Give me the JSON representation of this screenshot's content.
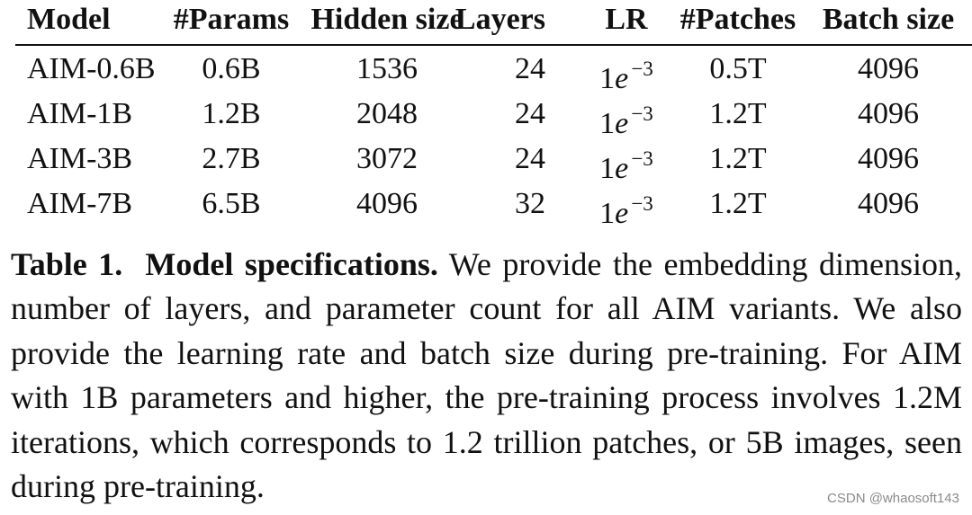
{
  "table": {
    "headers": [
      "Model",
      "#Params",
      "Hidden size",
      "Layers",
      "LR",
      "#Patches",
      "Batch size"
    ],
    "rows": [
      {
        "model": "AIM-0.6B",
        "params": "0.6B",
        "hidden": "1536",
        "layers": "24",
        "lr_base": "1",
        "lr_e": "e",
        "lr_exp": "−3",
        "patches": "0.5T",
        "batch": "4096"
      },
      {
        "model": "AIM-1B",
        "params": "1.2B",
        "hidden": "2048",
        "layers": "24",
        "lr_base": "1",
        "lr_e": "e",
        "lr_exp": "−3",
        "patches": "1.2T",
        "batch": "4096"
      },
      {
        "model": "AIM-3B",
        "params": "2.7B",
        "hidden": "3072",
        "layers": "24",
        "lr_base": "1",
        "lr_e": "e",
        "lr_exp": "−3",
        "patches": "1.2T",
        "batch": "4096"
      },
      {
        "model": "AIM-7B",
        "params": "6.5B",
        "hidden": "4096",
        "layers": "32",
        "lr_base": "1",
        "lr_e": "e",
        "lr_exp": "−3",
        "patches": "1.2T",
        "batch": "4096"
      }
    ]
  },
  "caption": {
    "label": "Table 1.",
    "title": "Model specifications.",
    "part1": " We provide the embedding dimension, number of layers, and parameter count for all ",
    "aim1": "AIM",
    "part2": " variants. We also provide the learning rate and batch size during pre-training. For ",
    "aim2": "AIM",
    "part3": " with 1B parameters and higher, the pre-training process involves 1.2M iterations, which corresponds to 1.2 trillion patches, or 5B images, seen during pre-training."
  },
  "watermark": "CSDN @whaosoft143"
}
